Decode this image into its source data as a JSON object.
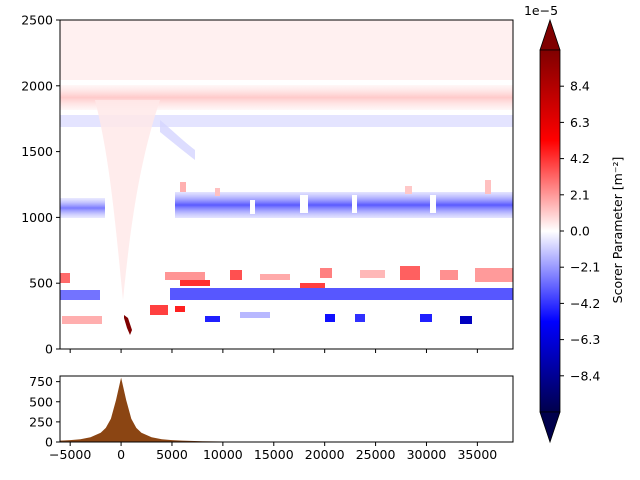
{
  "chart_data": [
    {
      "type": "heatmap",
      "title": "",
      "xlabel": "",
      "ylabel": "",
      "xlim": [
        -6000,
        38500
      ],
      "ylim": [
        0,
        2500
      ],
      "yticks": [
        0,
        500,
        1000,
        1500,
        2000,
        2500
      ],
      "xticks": [
        -5000,
        0,
        5000,
        10000,
        15000,
        20000,
        25000,
        30000,
        35000
      ],
      "xtick_labels_shown": false,
      "colormap": "seismic",
      "features": [
        {
          "desc": "weak positive band",
          "y_range": [
            1800,
            1950
          ],
          "value": 1e-05
        },
        {
          "desc": "weak negative band",
          "y_range": [
            1700,
            1780
          ],
          "value": -8e-06
        },
        {
          "desc": "negative band",
          "y_range": [
            1050,
            1150
          ],
          "value": -3e-05
        },
        {
          "desc": "mixed positive/negative speckle",
          "y_range": [
            450,
            600
          ],
          "value": 3e-05
        },
        {
          "desc": "negative band",
          "y_range": [
            400,
            470
          ],
          "value": -5e-05
        },
        {
          "desc": "mixed speckle near surface",
          "y_range": [
            180,
            330
          ],
          "value": 4e-05
        },
        {
          "desc": "extreme positive over peak",
          "x": 1000,
          "y_range": [
            150,
            300
          ],
          "value": 9.8e-05
        }
      ]
    },
    {
      "type": "area",
      "title": "",
      "xlabel": "",
      "ylabel": "",
      "xlim": [
        -6000,
        38500
      ],
      "ylim": [
        0,
        820
      ],
      "yticks": [
        0,
        250,
        500,
        750
      ],
      "xticks": [
        -5000,
        0,
        5000,
        10000,
        15000,
        20000,
        25000,
        30000,
        35000
      ],
      "x": [
        -6000,
        -5000,
        -4000,
        -3000,
        -2000,
        -1500,
        -1000,
        -500,
        0,
        500,
        1000,
        1500,
        2000,
        3000,
        4000,
        5000,
        6000,
        8000,
        10000,
        12000,
        15000,
        20000,
        25000,
        30000,
        38500
      ],
      "y": [
        18,
        24,
        35,
        60,
        115,
        175,
        290,
        520,
        800,
        520,
        290,
        175,
        115,
        60,
        35,
        24,
        17,
        10,
        6,
        4,
        2,
        1,
        1,
        0,
        0
      ],
      "color": "#8b4513"
    }
  ],
  "colorbar": {
    "label": "Scorer Parameter [m⁻²]",
    "offset_text": "1e−5",
    "ticks": [
      -8.4,
      -6.3,
      -4.2,
      -2.1,
      0.0,
      2.1,
      4.2,
      6.3,
      8.4
    ],
    "tick_labels": [
      "−8.4",
      "−6.3",
      "−4.2",
      "−2.1",
      "0.0",
      "2.1",
      "4.2",
      "6.3",
      "8.4"
    ],
    "vmin": -10.5,
    "vmax": 10.5,
    "extend": "both",
    "colors": [
      "#00004c",
      "#0000ff",
      "#ffffff",
      "#ff0000",
      "#7f0000"
    ]
  }
}
